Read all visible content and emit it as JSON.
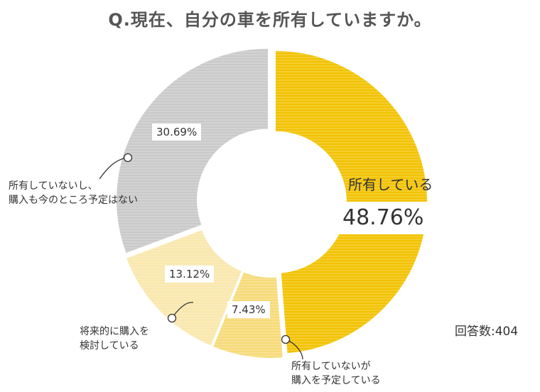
{
  "chart_data": {
    "type": "pie",
    "title": "Q.現在、自分の車を所有していますか。",
    "slices": [
      {
        "label": "所有している",
        "value": 48.76,
        "display": "48.76%",
        "color": "#f2c200"
      },
      {
        "label": "所有していないが購入を予定している",
        "label_lines": [
          "所有していないが",
          "購入を予定している"
        ],
        "value": 7.43,
        "display": "7.43%",
        "color": "#f6da78"
      },
      {
        "label": "将来的に購入を検討している",
        "label_lines": [
          "将来的に購入を",
          "検討している"
        ],
        "value": 13.12,
        "display": "13.12%",
        "color": "#f9e7ac"
      },
      {
        "label": "所有していないし、購入も今のところ予定はない",
        "label_lines": [
          "所有していないし、",
          "購入も今のところ予定はない"
        ],
        "value": 30.69,
        "display": "30.69%",
        "color": "#c9c9c9"
      }
    ],
    "total_label": "回答数:404",
    "legend": "none",
    "donut": true
  }
}
